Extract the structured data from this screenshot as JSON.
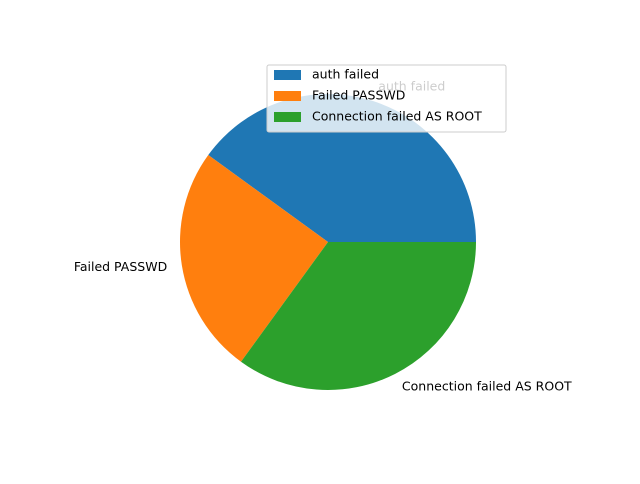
{
  "chart_data": {
    "type": "pie",
    "categories": [
      "auth failed",
      "Failed PASSWD",
      "Connection failed AS ROOT"
    ],
    "values": [
      40,
      25,
      35
    ],
    "colors": [
      "#1f77b4",
      "#ff7f0e",
      "#2ca02c"
    ],
    "start_angle_deg": 0,
    "direction": "counterclockwise",
    "legend_position": "upper-right",
    "legend": [
      "auth failed",
      "Failed PASSWD",
      "Connection failed AS ROOT"
    ]
  }
}
